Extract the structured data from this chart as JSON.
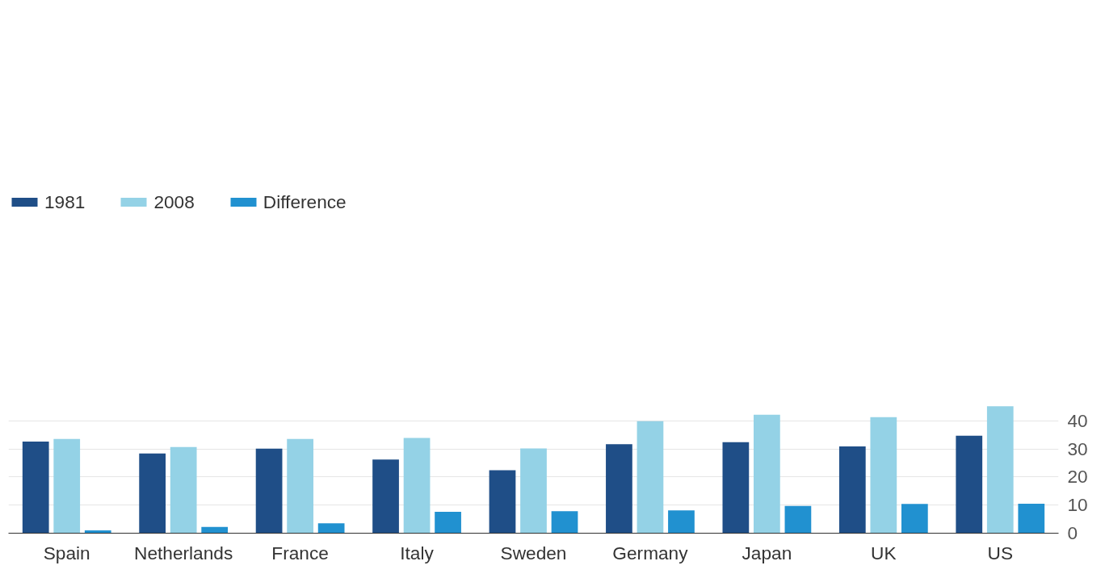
{
  "chart_data": {
    "type": "bar",
    "categories": [
      "Spain",
      "Netherlands",
      "France",
      "Italy",
      "Sweden",
      "Germany",
      "Japan",
      "UK",
      "US"
    ],
    "series": [
      {
        "name": "1981",
        "color": "#1f4e87",
        "values": [
          32.6,
          28.4,
          30.1,
          26.2,
          22.4,
          31.7,
          32.4,
          30.9,
          34.7
        ]
      },
      {
        "name": "2008",
        "color": "#94d2e6",
        "values": [
          33.6,
          30.7,
          33.6,
          33.9,
          30.2,
          39.9,
          42.2,
          41.3,
          45.2
        ]
      },
      {
        "name": "Difference",
        "color": "#2191d0",
        "values": [
          1.0,
          2.2,
          3.5,
          7.6,
          7.8,
          8.1,
          9.7,
          10.4,
          10.5
        ]
      }
    ],
    "ylim": [
      0,
      46
    ],
    "yticks": [
      0,
      10,
      20,
      30,
      40
    ],
    "grid": "y",
    "legend": "top left"
  }
}
